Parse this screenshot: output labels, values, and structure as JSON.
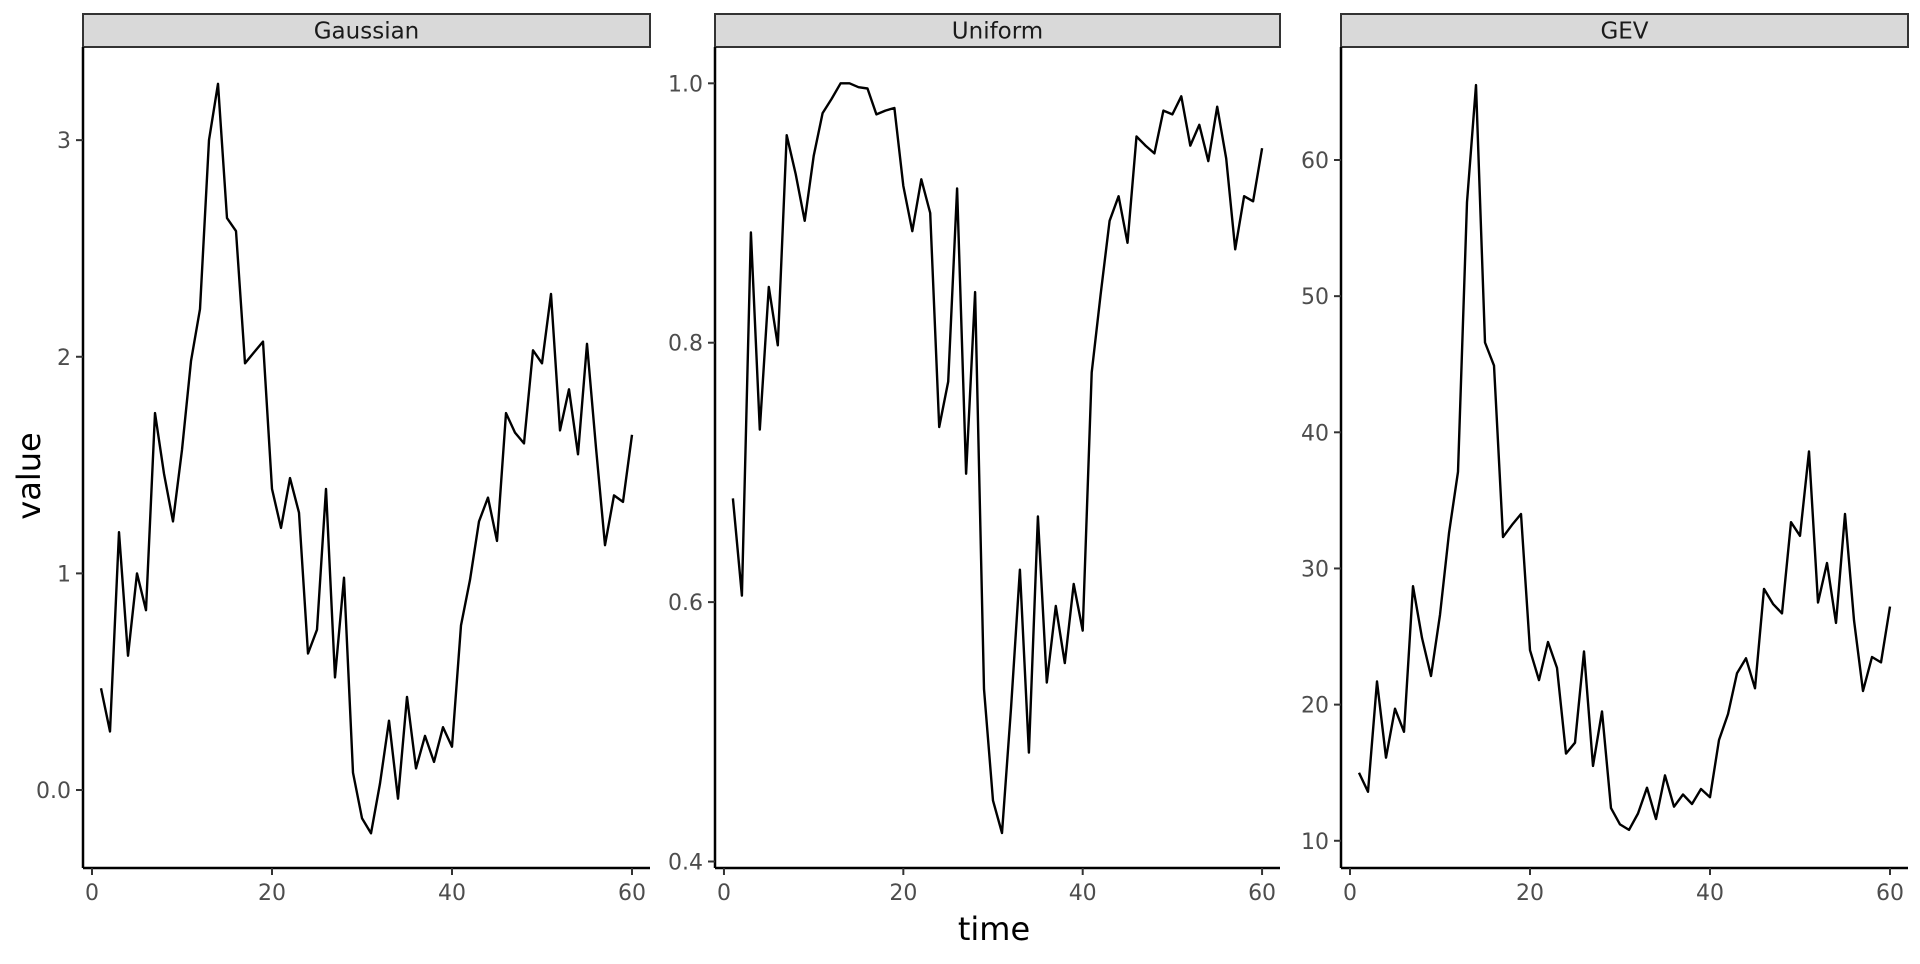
{
  "chart_data": {
    "type": "line",
    "xlabel": "time",
    "ylabel": "value",
    "line_color": "#000000",
    "strip_color": "#d9d9d9",
    "grid": false,
    "panels": [
      {
        "title": "Gaussian",
        "xlim": [
          -1,
          62
        ],
        "ylim": [
          -0.36,
          3.43
        ],
        "x_ticks": [
          0,
          20,
          40,
          60
        ],
        "y_ticks": [
          0,
          1,
          2,
          3
        ],
        "x": [
          1,
          2,
          3,
          4,
          5,
          6,
          7,
          8,
          9,
          10,
          11,
          12,
          13,
          14,
          15,
          16,
          17,
          18,
          19,
          20,
          21,
          22,
          23,
          24,
          25,
          26,
          27,
          28,
          29,
          30,
          31,
          32,
          33,
          34,
          35,
          36,
          37,
          38,
          39,
          40,
          41,
          42,
          43,
          44,
          45,
          46,
          47,
          48,
          49,
          50,
          51,
          52,
          53,
          54,
          55,
          56,
          57,
          58,
          59,
          60
        ],
        "values": [
          0.47,
          0.27,
          1.19,
          0.62,
          1.0,
          0.83,
          1.74,
          1.46,
          1.24,
          1.57,
          1.98,
          2.22,
          3.0,
          3.26,
          2.64,
          2.58,
          1.97,
          2.02,
          2.07,
          1.39,
          1.21,
          1.44,
          1.28,
          0.63,
          0.74,
          1.39,
          0.52,
          0.98,
          0.08,
          -0.13,
          -0.2,
          0.03,
          0.32,
          -0.04,
          0.43,
          0.1,
          0.25,
          0.13,
          0.29,
          0.2,
          0.76,
          0.97,
          1.24,
          1.35,
          1.15,
          1.74,
          1.65,
          1.6,
          2.03,
          1.97,
          2.29,
          1.66,
          1.85,
          1.55,
          2.06,
          1.58,
          1.13,
          1.36,
          1.33,
          1.64
        ]
      },
      {
        "title": "Uniform",
        "xlim": [
          -1,
          62
        ],
        "ylim": [
          0.395,
          1.028
        ],
        "x_ticks": [
          0,
          20,
          40,
          60
        ],
        "y_ticks": [
          0.4,
          0.6,
          0.8,
          1.0
        ],
        "x": [
          1,
          2,
          3,
          4,
          5,
          6,
          7,
          8,
          9,
          10,
          11,
          12,
          13,
          14,
          15,
          16,
          17,
          18,
          19,
          20,
          21,
          22,
          23,
          24,
          25,
          26,
          27,
          28,
          29,
          30,
          31,
          32,
          33,
          34,
          35,
          36,
          37,
          38,
          39,
          40,
          41,
          42,
          43,
          44,
          45,
          46,
          47,
          48,
          49,
          50,
          51,
          52,
          53,
          54,
          55,
          56,
          57,
          58,
          59,
          60
        ],
        "values": [
          0.68,
          0.605,
          0.885,
          0.733,
          0.843,
          0.798,
          0.96,
          0.93,
          0.894,
          0.944,
          0.977,
          0.988,
          1.0,
          1.0,
          0.997,
          0.996,
          0.976,
          0.979,
          0.981,
          0.921,
          0.886,
          0.926,
          0.9,
          0.735,
          0.77,
          0.919,
          0.699,
          0.839,
          0.533,
          0.447,
          0.422,
          0.518,
          0.625,
          0.484,
          0.666,
          0.538,
          0.597,
          0.553,
          0.614,
          0.578,
          0.777,
          0.837,
          0.894,
          0.913,
          0.877,
          0.959,
          0.952,
          0.946,
          0.979,
          0.976,
          0.99,
          0.952,
          0.968,
          0.94,
          0.982,
          0.942,
          0.872,
          0.913,
          0.909,
          0.95
        ]
      },
      {
        "title": "GEV",
        "xlim": [
          -1,
          62
        ],
        "ylim": [
          8,
          68.3
        ],
        "x_ticks": [
          0,
          20,
          40,
          60
        ],
        "y_ticks": [
          10,
          20,
          30,
          40,
          50,
          60
        ],
        "x": [
          1,
          2,
          3,
          4,
          5,
          6,
          7,
          8,
          9,
          10,
          11,
          12,
          13,
          14,
          15,
          16,
          17,
          18,
          19,
          20,
          21,
          22,
          23,
          24,
          25,
          26,
          27,
          28,
          29,
          30,
          31,
          32,
          33,
          34,
          35,
          36,
          37,
          38,
          39,
          40,
          41,
          42,
          43,
          44,
          45,
          46,
          47,
          48,
          49,
          50,
          51,
          52,
          53,
          54,
          55,
          56,
          57,
          58,
          59,
          60
        ],
        "values": [
          15.0,
          13.6,
          21.7,
          16.1,
          19.7,
          18.0,
          28.7,
          24.9,
          22.1,
          26.6,
          32.6,
          37.1,
          56.9,
          65.5,
          46.6,
          44.9,
          32.3,
          33.2,
          34.0,
          24.0,
          21.8,
          24.6,
          22.7,
          16.4,
          17.2,
          23.9,
          15.5,
          19.5,
          12.4,
          11.2,
          10.8,
          12.0,
          13.9,
          11.6,
          14.8,
          12.5,
          13.4,
          12.7,
          13.8,
          13.2,
          17.4,
          19.3,
          22.3,
          23.4,
          21.2,
          28.5,
          27.4,
          26.7,
          33.4,
          32.4,
          38.6,
          27.5,
          30.4,
          26.0,
          34.0,
          26.2,
          21.0,
          23.5,
          23.1,
          27.2
        ]
      }
    ]
  }
}
